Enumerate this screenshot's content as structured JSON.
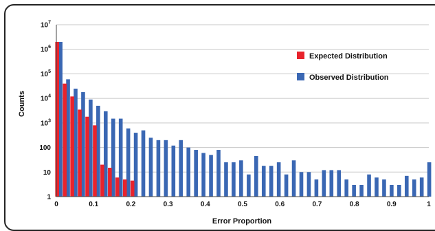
{
  "chart_data": {
    "type": "bar",
    "title": "",
    "xlabel": "Error Proportion",
    "ylabel": "Counts",
    "y_scale": "log",
    "ylim": [
      1,
      10000000
    ],
    "xlim": [
      0,
      1
    ],
    "x_ticks": [
      "0",
      "0.1",
      "0.2",
      "0.3",
      "0.4",
      "0.5",
      "0.6",
      "0.7",
      "0.8",
      "0.9",
      "1"
    ],
    "y_ticks": [
      {
        "base": "1",
        "exp": ""
      },
      {
        "base": "10",
        "exp": ""
      },
      {
        "base": "100",
        "exp": ""
      },
      {
        "base": "10",
        "exp": "3"
      },
      {
        "base": "10",
        "exp": "4"
      },
      {
        "base": "10",
        "exp": "5"
      },
      {
        "base": "10",
        "exp": "6"
      },
      {
        "base": "10",
        "exp": "7"
      }
    ],
    "grid": "horizontal",
    "legend_position": "top-right",
    "series": [
      {
        "name": "Expected Distribution",
        "color": "#e8232c",
        "x": [
          0.0,
          0.0202,
          0.0404,
          0.0606,
          0.0808,
          0.101,
          0.1212,
          0.1414,
          0.1616,
          0.1818,
          0.202
        ],
        "values": [
          2000000,
          40000,
          12000,
          3500,
          1800,
          800,
          20,
          15,
          6,
          5,
          4.5
        ]
      },
      {
        "name": "Observed Distribution",
        "color": "#3a67b3",
        "x": [
          0.0,
          0.0202,
          0.0404,
          0.0606,
          0.0808,
          0.101,
          0.1212,
          0.1414,
          0.1616,
          0.1818,
          0.202,
          0.2222,
          0.2424,
          0.2626,
          0.2828,
          0.303,
          0.3232,
          0.3434,
          0.3636,
          0.3838,
          0.404,
          0.4242,
          0.4444,
          0.4646,
          0.4848,
          0.5051,
          0.5253,
          0.5455,
          0.5657,
          0.5859,
          0.6061,
          0.6263,
          0.6465,
          0.6667,
          0.6869,
          0.7071,
          0.7273,
          0.7475,
          0.7677,
          0.7879,
          0.8081,
          0.8283,
          0.8485,
          0.8687,
          0.8889,
          0.9091,
          0.9293,
          0.9495,
          0.9697,
          0.9899
        ],
        "values": [
          2000000,
          60000,
          25000,
          18000,
          9000,
          5000,
          3000,
          1500,
          1500,
          600,
          400,
          500,
          250,
          200,
          200,
          120,
          200,
          100,
          80,
          60,
          50,
          80,
          25,
          25,
          30,
          8,
          45,
          18,
          18,
          25,
          8,
          30,
          10,
          10,
          5,
          12,
          12,
          12,
          5,
          3,
          3,
          8,
          6,
          5,
          3,
          3,
          7,
          5,
          6,
          25
        ]
      }
    ]
  }
}
